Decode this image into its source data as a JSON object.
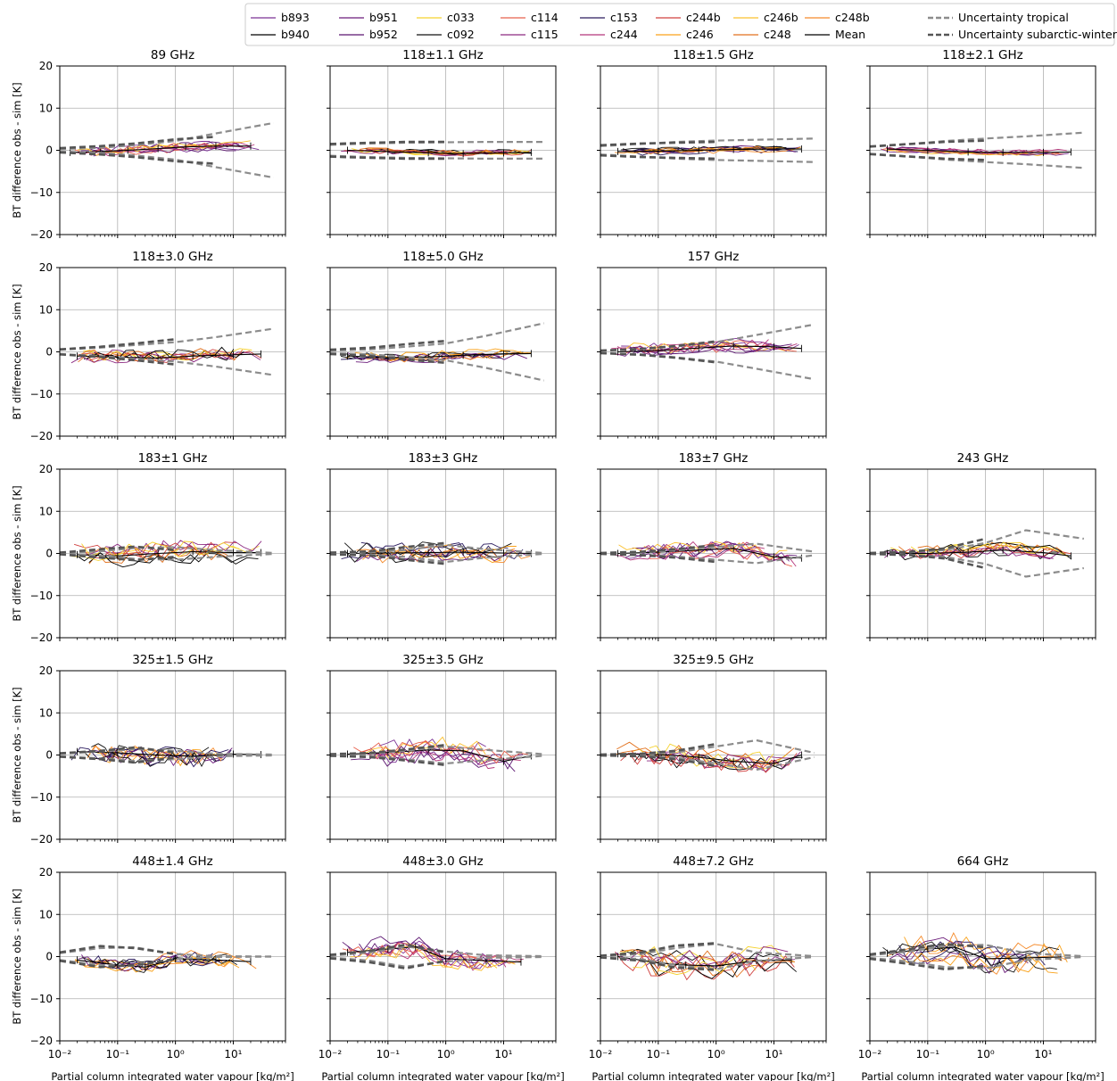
{
  "figure": {
    "xlabel": "Partial column integrated water vapour [kg/m²]",
    "ylabel": "BT difference obs - sim [K]"
  },
  "legend": {
    "entries": [
      {
        "label": "b893",
        "color": "#7b3294",
        "style": "solid"
      },
      {
        "label": "b940",
        "color": "#000000",
        "style": "solid"
      },
      {
        "label": "b951",
        "color": "#6a1b7a",
        "style": "solid"
      },
      {
        "label": "b952",
        "color": "#5b1470",
        "style": "solid"
      },
      {
        "label": "c033",
        "color": "#f5d22e",
        "style": "solid"
      },
      {
        "label": "c092",
        "color": "#111111",
        "style": "solid"
      },
      {
        "label": "c114",
        "color": "#e8604c",
        "style": "solid"
      },
      {
        "label": "c115",
        "color": "#8c2981",
        "style": "solid"
      },
      {
        "label": "c153",
        "color": "#2a1a5e",
        "style": "solid"
      },
      {
        "label": "c244",
        "color": "#b5367a",
        "style": "solid"
      },
      {
        "label": "c244b",
        "color": "#d0413f",
        "style": "solid"
      },
      {
        "label": "c246",
        "color": "#f9a21b",
        "style": "solid"
      },
      {
        "label": "c246b",
        "color": "#fbc02d",
        "style": "solid"
      },
      {
        "label": "c248",
        "color": "#e2711d",
        "style": "solid"
      },
      {
        "label": "c248b",
        "color": "#f58a2a",
        "style": "solid"
      },
      {
        "label": "Mean",
        "color": "#000000",
        "style": "solid"
      },
      {
        "label": "Uncertainty tropical",
        "color": "#8c8c8c",
        "style": "dashed"
      },
      {
        "label": "Uncertainty subarctic-winter",
        "color": "#555555",
        "style": "dashed"
      }
    ]
  },
  "chart_data": {
    "type": "line",
    "x_scale": "log",
    "xlim": [
      0.01,
      80
    ],
    "ylim": [
      -20,
      20
    ],
    "x_ticks": [
      "10⁻²",
      "10⁻¹",
      "10⁰",
      "10¹"
    ],
    "y_ticks": [
      "−20",
      "−10",
      "0",
      "10",
      "20"
    ],
    "grid": true,
    "legend_position": "top-right, above panels",
    "panels": [
      {
        "title": "89 GHz",
        "row": 0,
        "col": 0,
        "mean": [
          [
            0.015,
            -0.5
          ],
          [
            0.05,
            -0.3
          ],
          [
            0.15,
            0.0
          ],
          [
            0.5,
            0.4
          ],
          [
            1.5,
            0.8
          ],
          [
            5,
            1.0
          ],
          [
            20,
            1.0
          ]
        ],
        "trop": [
          0.3,
          0.6,
          1.2,
          2.2,
          4.0,
          6.5
        ],
        "sub": [
          0.5,
          1.0,
          1.6,
          2.6,
          3.2,
          null
        ],
        "spread": 1.2,
        "x_end": 30
      },
      {
        "title": "118±1.1 GHz",
        "row": 0,
        "col": 1,
        "mean": [
          [
            0.02,
            0.0
          ],
          [
            0.1,
            -0.3
          ],
          [
            0.5,
            -0.6
          ],
          [
            2,
            -0.8
          ],
          [
            10,
            -0.6
          ],
          [
            30,
            -0.5
          ]
        ],
        "trop": [
          1.3,
          1.6,
          1.8,
          1.9,
          2.0,
          2.0
        ],
        "sub": [
          1.5,
          1.8,
          2.0,
          2.0,
          null,
          null
        ],
        "spread": 0.8,
        "x_end": 30
      },
      {
        "title": "118±1.5 GHz",
        "row": 0,
        "col": 2,
        "mean": [
          [
            0.02,
            -0.3
          ],
          [
            0.1,
            -0.2
          ],
          [
            0.5,
            0.0
          ],
          [
            2,
            0.2
          ],
          [
            10,
            0.3
          ],
          [
            30,
            0.3
          ]
        ],
        "trop": [
          1.0,
          1.5,
          2.0,
          2.3,
          2.5,
          2.8
        ],
        "sub": [
          1.2,
          1.6,
          1.8,
          2.0,
          null,
          null
        ],
        "spread": 0.8,
        "x_end": 30
      },
      {
        "title": "118±2.1 GHz",
        "row": 0,
        "col": 3,
        "mean": [
          [
            0.02,
            0.3
          ],
          [
            0.1,
            0.0
          ],
          [
            0.5,
            -0.4
          ],
          [
            2,
            -0.5
          ],
          [
            10,
            -0.5
          ],
          [
            30,
            -0.4
          ]
        ],
        "trop": [
          0.8,
          1.5,
          2.2,
          2.8,
          3.3,
          4.2
        ],
        "sub": [
          0.9,
          1.5,
          2.0,
          2.3,
          null,
          null
        ],
        "spread": 0.7,
        "x_end": 30
      },
      {
        "title": "118±3.0 GHz",
        "row": 1,
        "col": 0,
        "mean": [
          [
            0.02,
            -1.0
          ],
          [
            0.1,
            -1.2
          ],
          [
            0.5,
            -1.5
          ],
          [
            2,
            -1.0
          ],
          [
            10,
            -0.7
          ],
          [
            30,
            -0.5
          ]
        ],
        "trop": [
          0.5,
          1.0,
          1.6,
          2.3,
          3.5,
          5.5
        ],
        "sub": [
          0.6,
          1.2,
          2.0,
          3.0,
          null,
          null
        ],
        "spread": 2.0,
        "x_end": 30
      },
      {
        "title": "118±5.0 GHz",
        "row": 1,
        "col": 1,
        "mean": [
          [
            0.02,
            -1.0
          ],
          [
            0.1,
            -1.4
          ],
          [
            0.5,
            -1.2
          ],
          [
            2,
            -0.8
          ],
          [
            10,
            -0.5
          ],
          [
            30,
            -0.4
          ]
        ],
        "trop": [
          0.3,
          0.6,
          1.2,
          2.0,
          3.8,
          6.8
        ],
        "sub": [
          0.5,
          1.0,
          1.8,
          2.6,
          null,
          null
        ],
        "spread": 1.2,
        "x_end": 30
      },
      {
        "title": "157 GHz",
        "row": 1,
        "col": 2,
        "mean": [
          [
            0.02,
            0.0
          ],
          [
            0.1,
            0.3
          ],
          [
            0.5,
            0.9
          ],
          [
            2,
            1.4
          ],
          [
            10,
            1.2
          ],
          [
            30,
            0.8
          ]
        ],
        "trop": [
          0.3,
          0.6,
          1.3,
          2.3,
          4.0,
          6.5
        ],
        "sub": [
          0.3,
          0.7,
          1.4,
          2.5,
          null,
          null
        ],
        "spread": 1.8,
        "x_end": 30
      },
      {
        "title": "183±1 GHz",
        "row": 2,
        "col": 0,
        "mean": [
          [
            0.02,
            -0.3
          ],
          [
            0.1,
            -0.6
          ],
          [
            0.5,
            0.0
          ],
          [
            2,
            0.4
          ],
          [
            10,
            0.2
          ],
          [
            30,
            0.2
          ]
        ],
        "trop": [
          0.1,
          0.5,
          1.3,
          1.5,
          0.8,
          0.1
        ],
        "sub": [
          0.2,
          1.0,
          1.6,
          0.8,
          null,
          null
        ],
        "spread": 2.5,
        "x_end": 30
      },
      {
        "title": "183±3 GHz",
        "row": 2,
        "col": 1,
        "mean": [
          [
            0.02,
            0.0
          ],
          [
            0.1,
            0.1
          ],
          [
            0.5,
            0.2
          ],
          [
            2,
            0.3
          ],
          [
            10,
            0.1
          ],
          [
            30,
            0.0
          ]
        ],
        "trop": [
          0.1,
          0.3,
          0.8,
          2.0,
          1.0,
          0.1
        ],
        "sub": [
          0.2,
          0.5,
          1.5,
          2.5,
          null,
          null
        ],
        "spread": 2.5,
        "x_end": 30
      },
      {
        "title": "183±7 GHz",
        "row": 2,
        "col": 2,
        "mean": [
          [
            0.02,
            0.0
          ],
          [
            0.1,
            0.3
          ],
          [
            0.5,
            0.8
          ],
          [
            2,
            1.2
          ],
          [
            10,
            -0.8
          ],
          [
            30,
            -1.1
          ]
        ],
        "trop": [
          0.1,
          0.3,
          0.7,
          1.5,
          2.3,
          0.4
        ],
        "sub": [
          0.1,
          0.4,
          1.0,
          2.0,
          null,
          null
        ],
        "spread": 2.0,
        "x_end": 30
      },
      {
        "title": "243 GHz",
        "row": 2,
        "col": 3,
        "mean": [
          [
            0.02,
            0.0
          ],
          [
            0.1,
            0.0
          ],
          [
            0.5,
            0.3
          ],
          [
            2,
            0.8
          ],
          [
            10,
            0.2
          ],
          [
            30,
            -0.6
          ]
        ],
        "trop": [
          0.1,
          0.3,
          0.8,
          2.5,
          5.5,
          3.5
        ],
        "sub": [
          0.1,
          0.4,
          1.2,
          3.5,
          null,
          null
        ],
        "spread": 1.8,
        "x_end": 30
      },
      {
        "title": "325±1.5 GHz",
        "row": 3,
        "col": 0,
        "mean": [
          [
            0.02,
            0.8
          ],
          [
            0.1,
            0.5
          ],
          [
            0.5,
            0.0
          ],
          [
            2,
            -0.3
          ],
          [
            10,
            0.2
          ],
          [
            30,
            0.1
          ]
        ],
        "trop": [
          0.3,
          0.8,
          1.4,
          1.0,
          0.3,
          0.1
        ],
        "sub": [
          0.4,
          1.0,
          1.8,
          0.6,
          null,
          null
        ],
        "spread": 2.8,
        "x_end": 10
      },
      {
        "title": "325±3.5 GHz",
        "row": 3,
        "col": 1,
        "mean": [
          [
            0.02,
            0.2
          ],
          [
            0.1,
            0.6
          ],
          [
            0.5,
            1.2
          ],
          [
            2,
            1.0
          ],
          [
            10,
            -1.5
          ],
          [
            30,
            -0.2
          ]
        ],
        "trop": [
          0.1,
          0.3,
          1.0,
          2.0,
          1.2,
          0.2
        ],
        "sub": [
          0.2,
          0.5,
          1.3,
          2.4,
          null,
          null
        ],
        "spread": 2.8,
        "x_end": 30
      },
      {
        "title": "325±9.5 GHz",
        "row": 3,
        "col": 2,
        "mean": [
          [
            0.02,
            0.3
          ],
          [
            0.1,
            0.1
          ],
          [
            0.5,
            -0.5
          ],
          [
            2,
            -1.5
          ],
          [
            10,
            -2.0
          ],
          [
            30,
            0.0
          ]
        ],
        "trop": [
          0.1,
          0.2,
          0.6,
          2.0,
          3.5,
          0.5
        ],
        "sub": [
          0.1,
          0.3,
          1.0,
          2.6,
          null,
          null
        ],
        "spread": 2.6,
        "x_end": 30
      },
      {
        "title": "448±1.4 GHz",
        "row": 4,
        "col": 0,
        "mean": [
          [
            0.02,
            -0.8
          ],
          [
            0.1,
            -2.0
          ],
          [
            0.3,
            -2.5
          ],
          [
            1,
            -0.5
          ],
          [
            5,
            -0.8
          ],
          [
            20,
            -1.2
          ]
        ],
        "trop": [
          0.8,
          2.0,
          2.2,
          0.6,
          0.1,
          0.0
        ],
        "sub": [
          1.0,
          2.5,
          2.0,
          0.6,
          null,
          null
        ],
        "spread": 2.0,
        "x_end": 25
      },
      {
        "title": "448±3.0 GHz",
        "row": 4,
        "col": 1,
        "mean": [
          [
            0.02,
            1.0
          ],
          [
            0.1,
            1.8
          ],
          [
            0.3,
            2.3
          ],
          [
            1,
            -0.5
          ],
          [
            5,
            -1.0
          ],
          [
            20,
            -1.3
          ]
        ],
        "trop": [
          0.2,
          1.0,
          2.4,
          1.2,
          0.3,
          0.1
        ],
        "sub": [
          0.4,
          1.4,
          2.8,
          1.0,
          null,
          null
        ],
        "spread": 2.6,
        "x_end": 25
      },
      {
        "title": "448±7.2 GHz",
        "row": 4,
        "col": 2,
        "mean": [
          [
            0.02,
            0.0
          ],
          [
            0.1,
            -1.5
          ],
          [
            0.3,
            -2.0
          ],
          [
            1,
            -2.2
          ],
          [
            5,
            -1.0
          ],
          [
            20,
            -0.8
          ]
        ],
        "trop": [
          0.1,
          0.6,
          2.0,
          3.0,
          1.0,
          0.1
        ],
        "sub": [
          0.2,
          1.0,
          2.6,
          3.2,
          null,
          null
        ],
        "spread": 3.5,
        "x_end": 25
      },
      {
        "title": "664 GHz",
        "row": 4,
        "col": 3,
        "mean": [
          [
            0.02,
            0.8
          ],
          [
            0.1,
            1.8
          ],
          [
            0.3,
            2.2
          ],
          [
            1,
            -0.5
          ],
          [
            5,
            -0.3
          ],
          [
            20,
            -0.1
          ]
        ],
        "trop": [
          0.3,
          1.2,
          2.5,
          2.8,
          0.8,
          0.1
        ],
        "sub": [
          0.5,
          1.8,
          3.0,
          2.2,
          null,
          null
        ],
        "spread": 3.5,
        "x_end": 25
      }
    ]
  }
}
